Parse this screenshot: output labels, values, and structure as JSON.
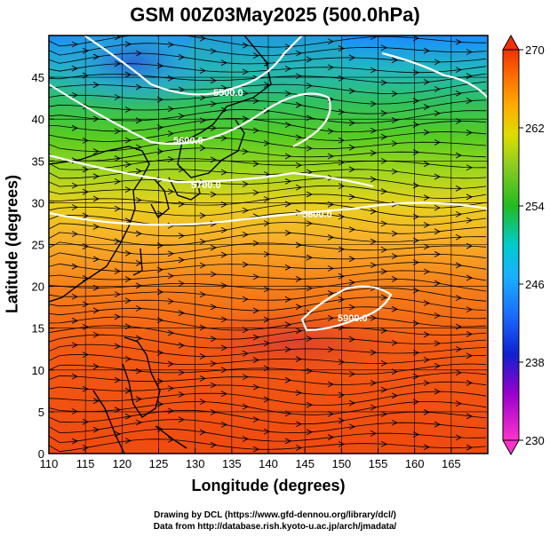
{
  "title": "GSM 00Z03May2025 (500.0hPa)",
  "xlabel": "Longitude (degrees)",
  "ylabel": "Latitude  (degrees)",
  "credits": {
    "line1": "Drawing by DCL (https://www.gfd-dennou.org/library/dcl/)",
    "line2": "Data from http://database.rish.kyoto-u.ac.jp/arch/jmadata/"
  },
  "map": {
    "lon_range": [
      110,
      170
    ],
    "lat_range": [
      0,
      50
    ],
    "x_ticks": [
      110,
      115,
      120,
      125,
      130,
      135,
      140,
      145,
      150,
      155,
      160,
      165
    ],
    "y_ticks": [
      0,
      5,
      10,
      15,
      20,
      25,
      30,
      35,
      40,
      45
    ],
    "field": "temperature shading (K)",
    "contour_labels": [
      "5500.0",
      "5600.0",
      "5700.0",
      "5800.0",
      "5900.0"
    ]
  },
  "colorbar": {
    "ticks": [
      230,
      238,
      246,
      254,
      262,
      270
    ],
    "range": [
      230,
      270
    ],
    "colors": [
      "#ff33cc",
      "#8800cc",
      "#1020d0",
      "#1a8cff",
      "#00cccc",
      "#22bb22",
      "#66cc22",
      "#ccdd00",
      "#ffaa00",
      "#ff6600",
      "#ee3300"
    ]
  }
}
